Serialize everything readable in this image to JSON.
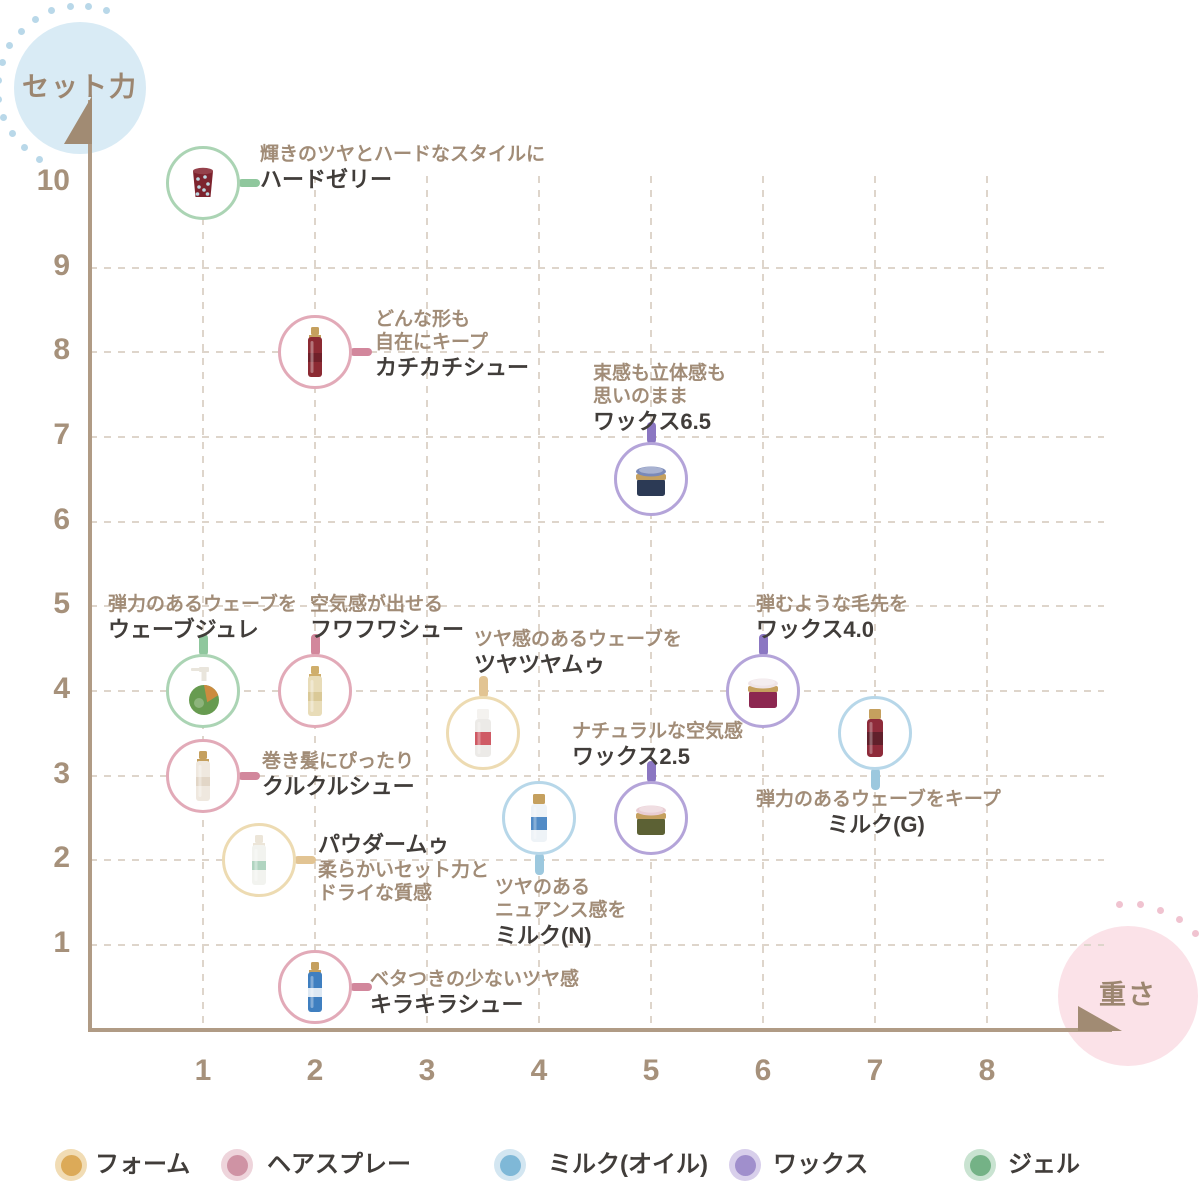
{
  "axes": {
    "y_axis_label": "セット力",
    "x_axis_label": "重さ",
    "x_ticks": [
      "1",
      "2",
      "3",
      "4",
      "5",
      "6",
      "7",
      "8"
    ],
    "y_ticks": [
      "10",
      "9",
      "8",
      "7",
      "6",
      "5",
      "4",
      "3",
      "2",
      "1"
    ]
  },
  "colors": {
    "axis_line": "#b09b85",
    "arrow": "#a18b73",
    "tick_text": "#a6917b",
    "grid_dash": "#ded5cb",
    "desc_text": "#a18c77",
    "name_text": "#413d3a",
    "y_bubble_bg": "#d9ebf5",
    "y_bubble_dots": "#b9d8e9",
    "x_bubble_bg": "#fbe2e8",
    "x_bubble_dots": "#f0c3d0",
    "bubble_text": "#9c8670",
    "categories": {
      "ジェル": {
        "border": "#abd4b4",
        "tab": "#8fc79d"
      },
      "ヘアスプレー": {
        "border": "#e2aab8",
        "tab": "#d2879c"
      },
      "ワックス": {
        "border": "#b4a4d9",
        "tab": "#8b77c2"
      },
      "フォーム": {
        "border": "#eddbb2",
        "tab": "#e2c493"
      },
      "ミルク(オイル)": {
        "border": "#b7d7e9",
        "tab": "#9cc8de"
      }
    }
  },
  "legend": {
    "items": [
      {
        "label": "フォーム",
        "dot": "#dcaa58",
        "ring": "#f1dcb4"
      },
      {
        "label": "ヘアスプレー",
        "dot": "#cf93a4",
        "ring": "#eed4db"
      },
      {
        "label": "ミルク(オイル)",
        "dot": "#7fb8d7",
        "ring": "#d3e6f1"
      },
      {
        "label": "ワックス",
        "dot": "#a08fcc",
        "ring": "#d8cfeb"
      },
      {
        "label": "ジェル",
        "dot": "#74b286",
        "ring": "#c9e3d1"
      }
    ]
  },
  "chart_data": {
    "type": "scatter",
    "x_label": "重さ",
    "y_label": "セット力",
    "xlim": [
      0,
      9
    ],
    "ylim": [
      0,
      10.8
    ],
    "grid": "dashed",
    "legend_position": "bottom",
    "points": [
      {
        "name": "ハードゼリー",
        "desc": [
          "輝きのツヤとハードなスタイルに"
        ],
        "x": 1,
        "y": 10,
        "category": "ジェル",
        "icon": "jelly-cup",
        "icon_colors": {
          "body": "#7d232e",
          "cap": "#95414b",
          "accent": "#bcd7e2"
        },
        "label_placement": "right",
        "label_order": "desc-first",
        "label_offset": [
          57,
          -40
        ]
      },
      {
        "name": "カチカチシュー",
        "desc": [
          "どんな形も",
          "自在にキープ"
        ],
        "x": 2,
        "y": 8,
        "category": "ヘアスプレー",
        "icon": "spray-can",
        "icon_colors": {
          "body": "#8c2a33",
          "cap": "#c5a05e",
          "accent": "#6d1f28"
        },
        "label_placement": "right",
        "label_order": "desc-first",
        "label_offset": [
          60,
          -44
        ]
      },
      {
        "name": "ワックス6.5",
        "desc": [
          "束感も立体感も",
          "思いのまま"
        ],
        "x": 5,
        "y": 6.5,
        "category": "ワックス",
        "icon": "wax-jar",
        "icon_colors": {
          "body": "#2c3a55",
          "cap": "#7a89b8",
          "accent": "#c5a05e"
        },
        "label_placement": "above",
        "label_order": "desc-first",
        "label_offset": [
          -58,
          -117
        ]
      },
      {
        "name": "ウェーブジュレ",
        "desc": [
          "弾力のあるウェーブを"
        ],
        "x": 1,
        "y": 4,
        "category": "ジェル",
        "icon": "pump-bottle",
        "icon_colors": {
          "body": "#679b50",
          "cap": "#e9e5dc",
          "accent": "#d28a3e"
        },
        "label_placement": "above",
        "label_order": "desc-first",
        "label_offset": [
          -95,
          -98
        ]
      },
      {
        "name": "フワフワシュー",
        "desc": [
          "空気感が出せる"
        ],
        "x": 2,
        "y": 4,
        "category": "ヘアスプレー",
        "icon": "spray-can",
        "icon_colors": {
          "body": "#e8dcb8",
          "cap": "#cfae6b",
          "accent": "#d8c694"
        },
        "label_placement": "above",
        "label_order": "desc-first",
        "label_offset": [
          -5,
          -98
        ]
      },
      {
        "name": "クルクルシュー",
        "desc": [
          "巻き髪にぴったり"
        ],
        "x": 1,
        "y": 3,
        "category": "ヘアスプレー",
        "icon": "spray-can",
        "icon_colors": {
          "body": "#efe8df",
          "cap": "#c5a05e",
          "accent": "#e0d4c4"
        },
        "label_placement": "right",
        "label_order": "desc-first",
        "label_offset": [
          59,
          -26
        ]
      },
      {
        "name": "パウダームゥ",
        "desc": [
          "柔らかいセット力と",
          "ドライな質感"
        ],
        "x": 1.5,
        "y": 2,
        "category": "フォーム",
        "icon": "spray-can",
        "icon_colors": {
          "body": "#f2f3ef",
          "cap": "#ece5d8",
          "accent": "#a8d0ba"
        },
        "label_placement": "right",
        "label_order": "name-first",
        "label_offset": [
          59,
          -29
        ]
      },
      {
        "name": "ツヤツヤムゥ",
        "desc": [
          "ツヤ感のあるウェーブを"
        ],
        "x": 3.5,
        "y": 3.5,
        "category": "フォーム",
        "icon": "bottle",
        "icon_colors": {
          "body": "#eceae7",
          "cap": "#f4f2ef",
          "accent": "#cc4a55"
        },
        "label_placement": "above",
        "label_order": "desc-first",
        "label_offset": [
          -9,
          -105
        ]
      },
      {
        "name": "ミルク(N)",
        "desc": [
          "ツヤのある",
          "ニュアンス感を"
        ],
        "x": 4,
        "y": 2.5,
        "category": "ミルク(オイル)",
        "icon": "bottle",
        "icon_colors": {
          "body": "#eef3f7",
          "cap": "#c5a05e",
          "accent": "#3f7fc0"
        },
        "label_placement": "below",
        "label_order": "desc-first",
        "label_offset": [
          -44,
          58
        ]
      },
      {
        "name": "ワックス2.5",
        "desc": [
          "ナチュラルな空気感"
        ],
        "x": 5,
        "y": 2.5,
        "category": "ワックス",
        "icon": "wax-jar",
        "icon_colors": {
          "body": "#5c6134",
          "cap": "#e9cdd3",
          "accent": "#c5a05e"
        },
        "label_placement": "above",
        "label_order": "desc-first",
        "label_offset": [
          -79,
          -98
        ]
      },
      {
        "name": "ワックス4.0",
        "desc": [
          "弾むような毛先を"
        ],
        "x": 6,
        "y": 4,
        "category": "ワックス",
        "icon": "wax-jar",
        "icon_colors": {
          "body": "#8c2750",
          "cap": "#efe4e7",
          "accent": "#c5a05e"
        },
        "label_placement": "above",
        "label_order": "desc-first",
        "label_offset": [
          -7,
          -98
        ]
      },
      {
        "name": "ミルク(G)",
        "desc": [
          "弾力のあるウェーブをキープ"
        ],
        "x": 7,
        "y": 3.5,
        "category": "ミルク(オイル)",
        "icon": "bottle",
        "icon_colors": {
          "body": "#8e2b3a",
          "cap": "#c5a05e",
          "accent": "#5c1f2a"
        },
        "label_placement": "below",
        "label_order": "desc-first",
        "label_offset": [
          -119,
          55
        ],
        "label_align": "center",
        "label_width": 240
      },
      {
        "name": "キラキラシュー",
        "desc": [
          "ベタつきの少ないツヤ感"
        ],
        "x": 2,
        "y": 0.5,
        "category": "ヘアスプレー",
        "icon": "spray-can",
        "icon_colors": {
          "body": "#3f7fc0",
          "cap": "#c5a05e",
          "accent": "#eef4f8"
        },
        "label_placement": "right",
        "label_order": "desc-first",
        "label_offset": [
          55,
          -19
        ]
      }
    ]
  }
}
